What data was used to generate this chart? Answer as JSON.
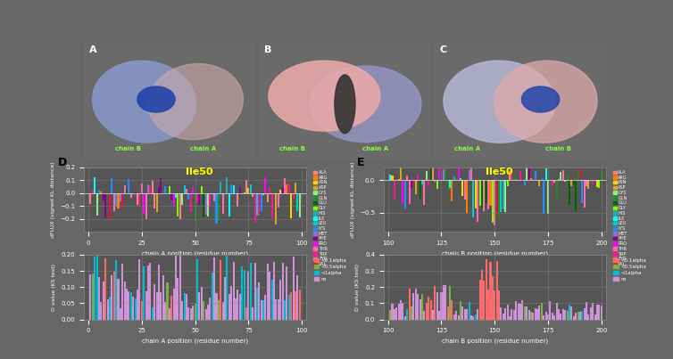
{
  "panel_D_title": "Ile50",
  "panel_E_title": "Ile50",
  "chainA_xlabel": "chain A position (residue number)",
  "chainB_xlabel": "chain B position (residue number)",
  "dflux_ylabel": "dFLUX (signed KL distance)",
  "dval_ylabel": "D value (KS test)",
  "chainA_x_ticks": [
    0,
    25,
    50,
    75,
    100
  ],
  "chainB_x_ticks": [
    100,
    125,
    150,
    175,
    200
  ],
  "chainA_xlim": [
    -2,
    102
  ],
  "chainB_xlim": [
    98,
    202
  ],
  "dflux_A_ylim": [
    -0.3,
    0.2
  ],
  "dflux_B_ylim": [
    -0.8,
    0.2
  ],
  "dval_A_ylim": [
    0.0,
    0.2
  ],
  "dval_B_ylim": [
    0.0,
    0.4
  ],
  "dflux_A_yticks": [
    -0.2,
    -0.1,
    0.0,
    0.1,
    0.2
  ],
  "dflux_B_yticks": [
    -0.5,
    0.0
  ],
  "dval_A_yticks": [
    0.0,
    0.05,
    0.1,
    0.15,
    0.2
  ],
  "dval_B_yticks": [
    0.0,
    0.1,
    0.2,
    0.3,
    0.4
  ],
  "bg_color": "#555555",
  "grid_color": "#888888",
  "title_color": "#ffff00",
  "aa_legend_labels": [
    "ALA",
    "ARG",
    "ASN",
    "ASP",
    "CYS",
    "GLN",
    "GLU",
    "GLY",
    "HIS",
    "ILE",
    "LEU",
    "LYS",
    "MET",
    "PHE",
    "PRO",
    "THR",
    "TRP",
    "TYR",
    "VAL"
  ],
  "aa_legend_colors": [
    "#FF8080",
    "#FF8000",
    "#FFD700",
    "#DAA520",
    "#90EE90",
    "#228B22",
    "#006400",
    "#7CFC00",
    "#20B2AA",
    "#00FFFF",
    "#00CED1",
    "#1E90FF",
    "#9370DB",
    "#8B008B",
    "#FF00FF",
    "#FF69B4",
    "#FF1493",
    "#FF6EB4",
    "#DC143C"
  ],
  "ks_legend_labels": [
    "<0.1alpha",
    "<0.5alpha",
    "<1alpha",
    "ns"
  ],
  "ks_legend_colors": [
    "#FF6B6B",
    "#7CB342",
    "#00BCD4",
    "#CE93D8"
  ],
  "label_A": "D",
  "label_E": "E"
}
